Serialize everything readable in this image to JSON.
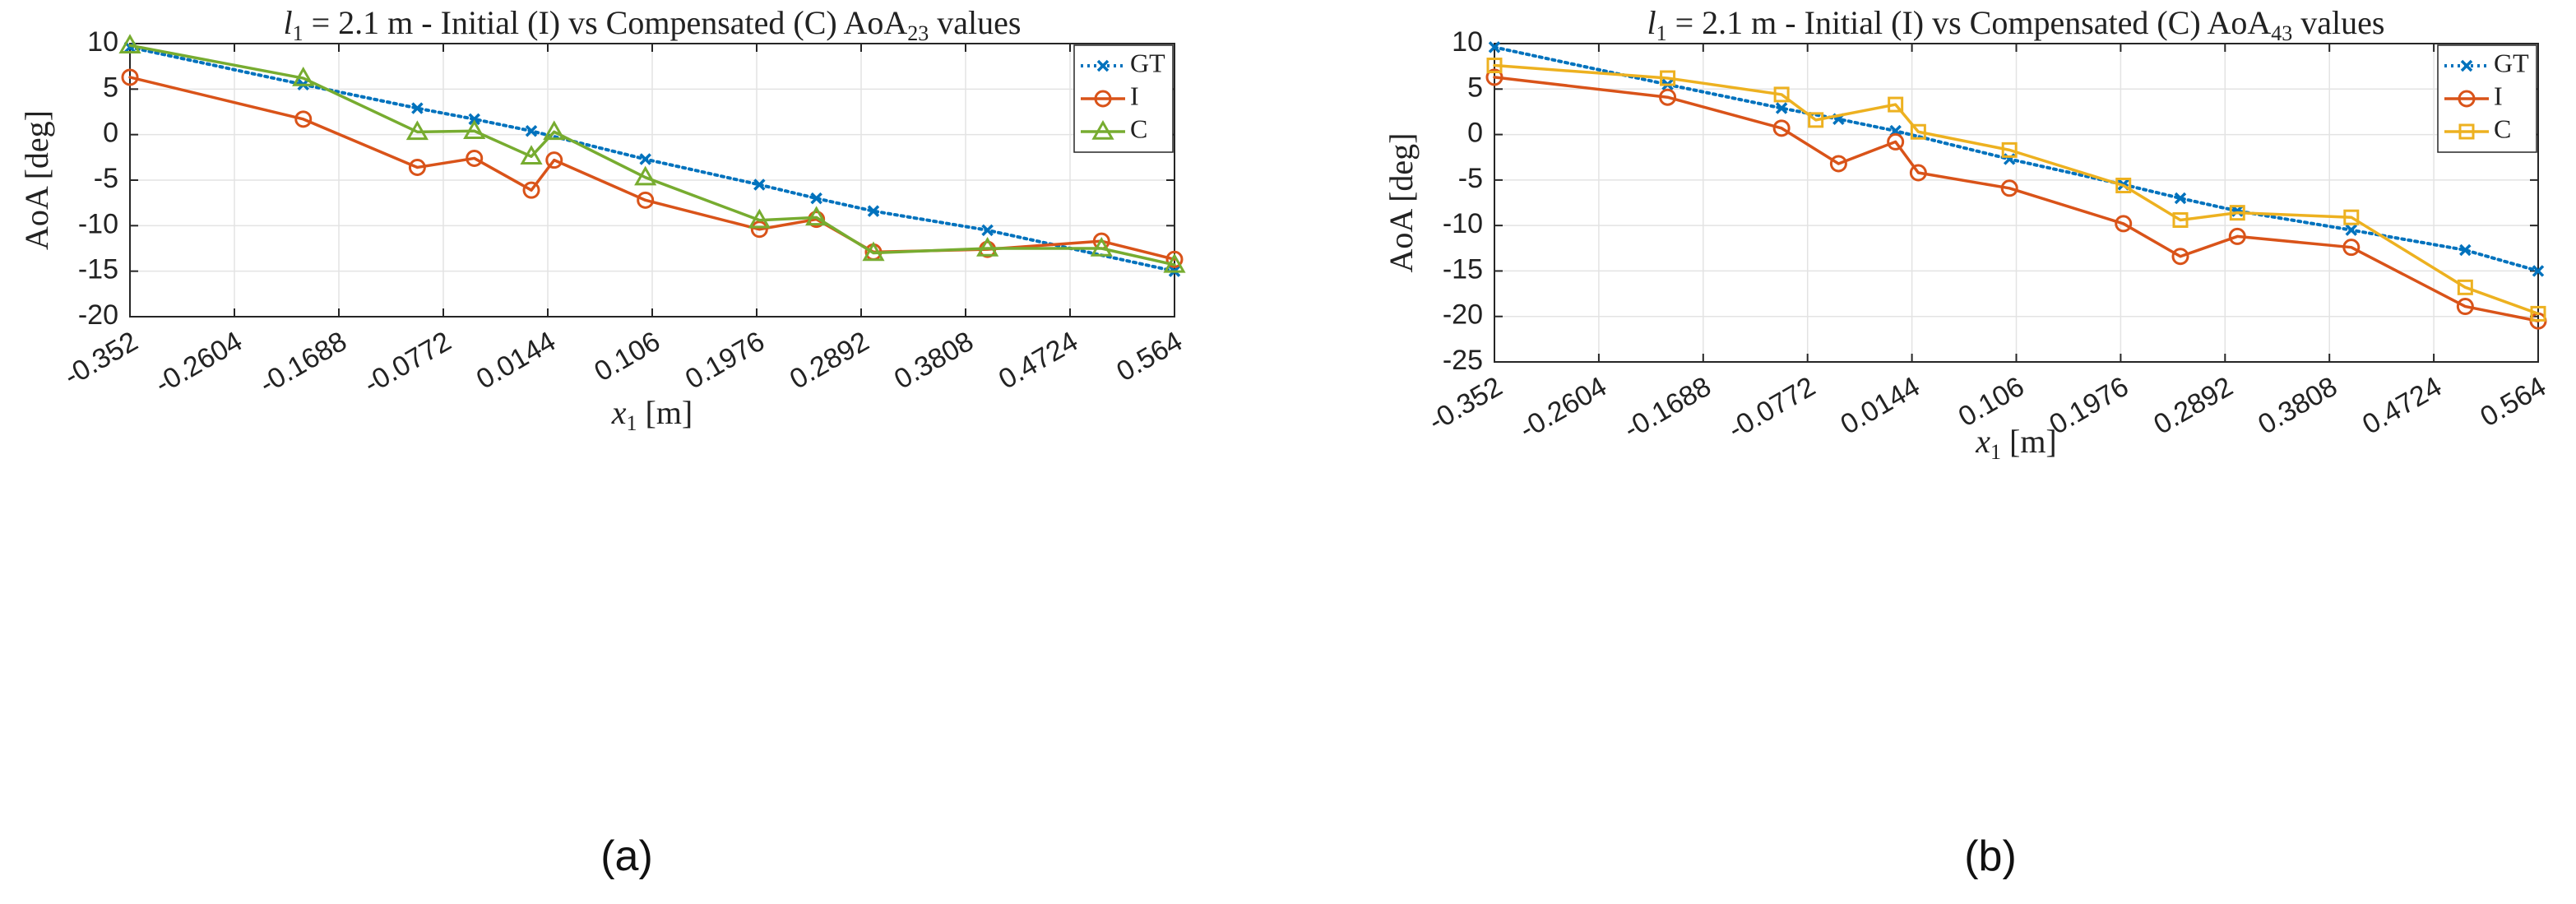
{
  "chart_data": [
    {
      "type": "line",
      "panel_label": "(a)",
      "title": {
        "var": "l",
        "var_sub": "1",
        "text": " = 2.1 m - Initial (I) vs Compensated (C) AoA",
        "sub": "23",
        "suffix": " values"
      },
      "xlabel": {
        "var": "x",
        "sub": "1",
        "unit": " [m]"
      },
      "ylabel": "AoA [deg]",
      "xlim": [
        -0.352,
        0.564
      ],
      "ylim": [
        -20,
        10
      ],
      "xticks": [
        -0.352,
        -0.2604,
        -0.1688,
        -0.0772,
        0.0144,
        0.106,
        0.1976,
        0.2892,
        0.3808,
        0.4724,
        0.564
      ],
      "xtick_labels": [
        "-0.352",
        "-0.2604",
        "-0.1688",
        "-0.0772",
        "0.0144",
        "0.106",
        "0.1976",
        "0.2892",
        "0.3808",
        "0.4724",
        "0.564"
      ],
      "yticks": [
        10,
        5,
        0,
        -5,
        -10,
        -15,
        -20
      ],
      "ytick_labels": [
        "10",
        "5",
        "0",
        "-5",
        "-10",
        "-15",
        "-20"
      ],
      "grid": true,
      "legend": "top-right",
      "series": [
        {
          "name": "GT",
          "color": "#0072BD",
          "style": "dotted",
          "marker": "x",
          "x": [
            -0.352,
            -0.2,
            -0.1,
            -0.05,
            0.0,
            0.1,
            0.2,
            0.25,
            0.3,
            0.4,
            0.564
          ],
          "y": [
            9.6,
            5.5,
            2.9,
            1.7,
            0.4,
            -2.7,
            -5.5,
            -7.0,
            -8.4,
            -10.5,
            -15.0
          ]
        },
        {
          "name": "I",
          "color": "#D95319",
          "style": "solid",
          "marker": "o",
          "x": [
            -0.352,
            -0.2,
            -0.1,
            -0.05,
            0.0,
            0.02,
            0.1,
            0.2,
            0.25,
            0.3,
            0.4,
            0.5,
            0.564
          ],
          "y": [
            6.3,
            1.7,
            -3.6,
            -2.6,
            -6.1,
            -2.8,
            -7.2,
            -10.4,
            -9.3,
            -12.9,
            -12.6,
            -11.7,
            -13.7
          ]
        },
        {
          "name": "C",
          "color": "#77AC30",
          "style": "solid",
          "marker": "triangle",
          "x": [
            -0.352,
            -0.2,
            -0.1,
            -0.05,
            0.0,
            0.02,
            0.1,
            0.2,
            0.25,
            0.3,
            0.4,
            0.5,
            0.564
          ],
          "y": [
            9.8,
            6.2,
            0.3,
            0.4,
            -2.4,
            0.3,
            -4.7,
            -9.4,
            -9.1,
            -13.0,
            -12.5,
            -12.5,
            -14.3
          ]
        }
      ]
    },
    {
      "type": "line",
      "panel_label": "(b)",
      "title": {
        "var": "l",
        "var_sub": "1",
        "text": " = 2.1 m - Initial (I) vs Compensated (C) AoA",
        "sub": "43",
        "suffix": " values"
      },
      "xlabel": {
        "var": "x",
        "sub": "1",
        "unit": " [m]"
      },
      "ylabel": "AoA [deg]",
      "xlim": [
        -0.352,
        0.564
      ],
      "ylim": [
        -25,
        10
      ],
      "xticks": [
        -0.352,
        -0.2604,
        -0.1688,
        -0.0772,
        0.0144,
        0.106,
        0.1976,
        0.2892,
        0.3808,
        0.4724,
        0.564
      ],
      "xtick_labels": [
        "-0.352",
        "-0.2604",
        "-0.1688",
        "-0.0772",
        "0.0144",
        "0.106",
        "0.1976",
        "0.2892",
        "0.3808",
        "0.4724",
        "0.564"
      ],
      "yticks": [
        10,
        5,
        0,
        -5,
        -10,
        -15,
        -20,
        -25
      ],
      "ytick_labels": [
        "10",
        "5",
        "0",
        "-5",
        "-10",
        "-15",
        "-20",
        "-25"
      ],
      "grid": true,
      "legend": "top-right",
      "series": [
        {
          "name": "GT",
          "color": "#0072BD",
          "style": "dotted",
          "marker": "x",
          "x": [
            -0.352,
            -0.2,
            -0.1,
            -0.05,
            0.0,
            0.1,
            0.2,
            0.25,
            0.3,
            0.4,
            0.5,
            0.564
          ],
          "y": [
            9.6,
            5.5,
            2.9,
            1.7,
            0.4,
            -2.7,
            -5.5,
            -7.0,
            -8.4,
            -10.5,
            -12.7,
            -15.0
          ]
        },
        {
          "name": "I",
          "color": "#D95319",
          "style": "solid",
          "marker": "o",
          "x": [
            -0.352,
            -0.2,
            -0.1,
            -0.05,
            0.0,
            0.02,
            0.1,
            0.2,
            0.25,
            0.3,
            0.4,
            0.5,
            0.564
          ],
          "y": [
            6.3,
            4.1,
            0.7,
            -3.2,
            -0.8,
            -4.2,
            -5.9,
            -9.8,
            -13.4,
            -11.2,
            -12.4,
            -18.9,
            -20.5
          ]
        },
        {
          "name": "C",
          "color": "#EDB120",
          "style": "solid",
          "marker": "square",
          "x": [
            -0.352,
            -0.2,
            -0.1,
            -0.07,
            0.0,
            0.02,
            0.1,
            0.2,
            0.25,
            0.3,
            0.4,
            0.5,
            0.564
          ],
          "y": [
            7.6,
            6.2,
            4.4,
            1.6,
            3.3,
            0.3,
            -1.7,
            -5.6,
            -9.4,
            -8.6,
            -9.1,
            -16.8,
            -19.7
          ]
        }
      ]
    }
  ]
}
